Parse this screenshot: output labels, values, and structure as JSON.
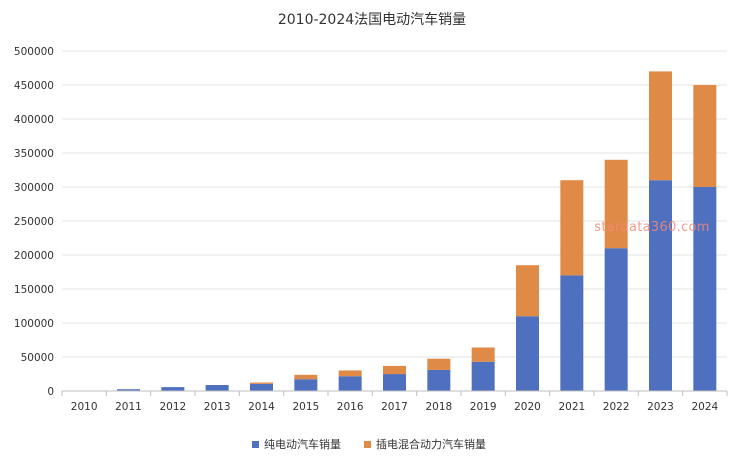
{
  "chart_data": {
    "type": "bar",
    "stacked": true,
    "title": "2010-2024法国电动汽车销量",
    "xlabel": "",
    "ylabel": "",
    "categories": [
      "2010",
      "2011",
      "2012",
      "2013",
      "2014",
      "2015",
      "2016",
      "2017",
      "2018",
      "2019",
      "2020",
      "2021",
      "2022",
      "2023",
      "2024"
    ],
    "series": [
      {
        "name": "纯电动汽车销量",
        "color": "#4f6fbf",
        "values": [
          300,
          2600,
          5700,
          8800,
          10500,
          17300,
          21700,
          24900,
          31000,
          43000,
          110000,
          170000,
          210000,
          310000,
          300000
        ]
      },
      {
        "name": "插电混合动力汽车销量",
        "color": "#e08a48",
        "values": [
          0,
          0,
          0,
          0,
          2000,
          6500,
          8500,
          12000,
          16500,
          21000,
          75000,
          140000,
          130000,
          160000,
          150000
        ]
      }
    ],
    "ylim": [
      0,
      500000
    ],
    "yticks": [
      "0",
      "50000",
      "100000",
      "150000",
      "200000",
      "250000",
      "300000",
      "350000",
      "400000",
      "450000",
      "500000"
    ],
    "grid": true,
    "legend_position": "bottom",
    "watermark": "stardata360.com"
  }
}
